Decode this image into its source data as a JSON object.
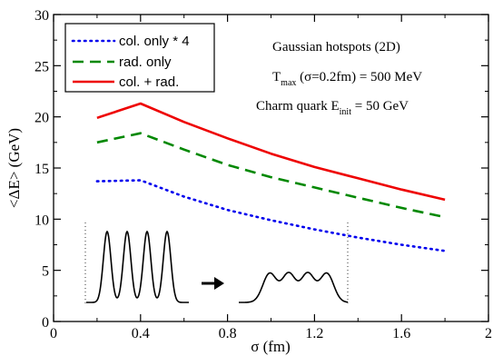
{
  "chart_data": {
    "type": "line",
    "title": "",
    "xlabel": "σ (fm)",
    "ylabel": "<ΔE> (GeV)",
    "xlim": [
      0,
      2
    ],
    "ylim": [
      0,
      30
    ],
    "x_ticks": [
      0,
      0.4,
      0.8,
      1.2,
      1.6,
      2
    ],
    "x_tick_labels": [
      "0",
      "0.4",
      "0.8",
      "1.2",
      "1.6",
      "2"
    ],
    "y_ticks": [
      0,
      5,
      10,
      15,
      20,
      25,
      30
    ],
    "y_tick_labels": [
      "0",
      "5",
      "10",
      "15",
      "20",
      "25",
      "30"
    ],
    "legend_position": "top-left",
    "grid": false,
    "series": [
      {
        "name": "col. only * 4",
        "color": "#0000ee",
        "style": "dotted",
        "x": [
          0.2,
          0.4,
          0.6,
          0.8,
          1.0,
          1.2,
          1.4,
          1.6,
          1.8
        ],
        "y": [
          13.7,
          13.8,
          12.2,
          10.9,
          9.9,
          9.0,
          8.2,
          7.5,
          6.9
        ]
      },
      {
        "name": "rad. only",
        "color": "#008800",
        "style": "dashed",
        "x": [
          0.2,
          0.4,
          0.6,
          0.8,
          1.0,
          1.2,
          1.4,
          1.6,
          1.8
        ],
        "y": [
          17.5,
          18.4,
          16.8,
          15.3,
          14.1,
          13.1,
          12.1,
          11.1,
          10.2
        ]
      },
      {
        "name": "col. + rad.",
        "color": "#ee0000",
        "style": "solid",
        "x": [
          0.2,
          0.4,
          0.6,
          0.8,
          1.0,
          1.2,
          1.4,
          1.6,
          1.8
        ],
        "y": [
          19.9,
          21.3,
          19.5,
          17.9,
          16.4,
          15.1,
          14.0,
          12.9,
          11.9
        ]
      }
    ],
    "annotations": {
      "line1": "Gaussian hotspots (2D)",
      "line2_main": "T",
      "line2_sub": "max",
      "line2_rest": " (σ=0.2fm) = 500 MeV",
      "line3_main": "Charm quark E",
      "line3_sub": "init",
      "line3_rest": " = 50 GeV"
    },
    "inset": {
      "arrow_icon": "right-arrow-icon"
    }
  }
}
